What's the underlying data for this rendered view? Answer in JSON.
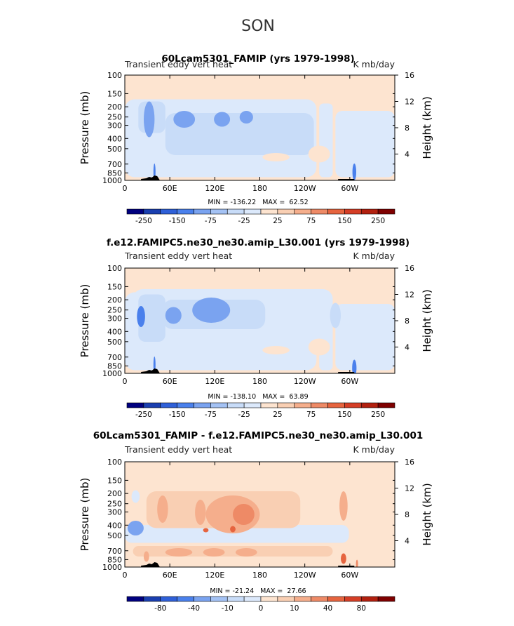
{
  "page_title": "SON",
  "chart_data": [
    {
      "type": "heatmap",
      "title": "60Lcam5301_FAMIP (yrs 1979-1998)",
      "left_label": "Transient eddy vert heat",
      "right_label": "K mb/day",
      "ylabel": "Pressure (mb)",
      "ylabel_right": "Height (km)",
      "x_ticks": [
        "0",
        "60E",
        "120E",
        "180",
        "120W",
        "60W"
      ],
      "y_ticks": [
        "100",
        "150",
        "200",
        "250",
        "300",
        "400",
        "500",
        "700",
        "850",
        "1000"
      ],
      "y_ticks_right": [
        "16",
        "12",
        "8",
        "4"
      ],
      "stats": "MIN = -136.22   MAX =  62.52",
      "colorbar_labels": [
        "-250",
        "-150",
        "-75",
        "-25",
        "25",
        "75",
        "150",
        "250"
      ],
      "colorbar_colors": [
        "#00007f",
        "#1a3fb0",
        "#2f60d8",
        "#4a80ec",
        "#7aa3f0",
        "#a4c2f4",
        "#c8dcf8",
        "#dce9fb",
        "#fde4d0",
        "#f9cfb3",
        "#f5ae8c",
        "#ee8a66",
        "#e6643f",
        "#d53e26",
        "#b2200f",
        "#7f0000"
      ],
      "min": -136.22,
      "max": 62.52
    },
    {
      "type": "heatmap",
      "title": "f.e12.FAMIPC5.ne30_ne30.amip_L30.001 (yrs 1979-1998)",
      "left_label": "Transient eddy vert heat",
      "right_label": "K mb/day",
      "ylabel": "Pressure (mb)",
      "ylabel_right": "Height (km)",
      "x_ticks": [
        "0",
        "60E",
        "120E",
        "180",
        "120W",
        "60W"
      ],
      "y_ticks": [
        "100",
        "150",
        "200",
        "250",
        "300",
        "400",
        "500",
        "700",
        "850",
        "1000"
      ],
      "y_ticks_right": [
        "16",
        "12",
        "8",
        "4"
      ],
      "stats": "MIN = -138.10   MAX =  63.89",
      "colorbar_labels": [
        "-250",
        "-150",
        "-75",
        "-25",
        "25",
        "75",
        "150",
        "250"
      ],
      "colorbar_colors": [
        "#00007f",
        "#1a3fb0",
        "#2f60d8",
        "#4a80ec",
        "#7aa3f0",
        "#a4c2f4",
        "#c8dcf8",
        "#dce9fb",
        "#fde4d0",
        "#f9cfb3",
        "#f5ae8c",
        "#ee8a66",
        "#e6643f",
        "#d53e26",
        "#b2200f",
        "#7f0000"
      ],
      "min": -138.1,
      "max": 63.89
    },
    {
      "type": "heatmap",
      "title": "60Lcam5301_FAMIP - f.e12.FAMIPC5.ne30_ne30.amip_L30.001",
      "left_label": "Transient eddy vert heat",
      "right_label": "K mb/day",
      "ylabel": "Pressure (mb)",
      "ylabel_right": "Height (km)",
      "x_ticks": [
        "0",
        "60E",
        "120E",
        "180",
        "120W",
        "60W"
      ],
      "y_ticks": [
        "100",
        "150",
        "200",
        "250",
        "300",
        "400",
        "500",
        "700",
        "850",
        "1000"
      ],
      "y_ticks_right": [
        "16",
        "12",
        "8",
        "4"
      ],
      "stats": "MIN = -21.24   MAX =  27.66",
      "colorbar_labels": [
        "-80",
        "-40",
        "-10",
        "0",
        "10",
        "40",
        "80"
      ],
      "colorbar_colors": [
        "#00007f",
        "#1a3fb0",
        "#2f60d8",
        "#4a80ec",
        "#7aa3f0",
        "#a4c2f4",
        "#c8dcf8",
        "#dce9fb",
        "#fde4d0",
        "#f9cfb3",
        "#f5ae8c",
        "#ee8a66",
        "#e6643f",
        "#d53e26",
        "#b2200f",
        "#7f0000"
      ],
      "min": -21.24,
      "max": 27.66
    }
  ]
}
